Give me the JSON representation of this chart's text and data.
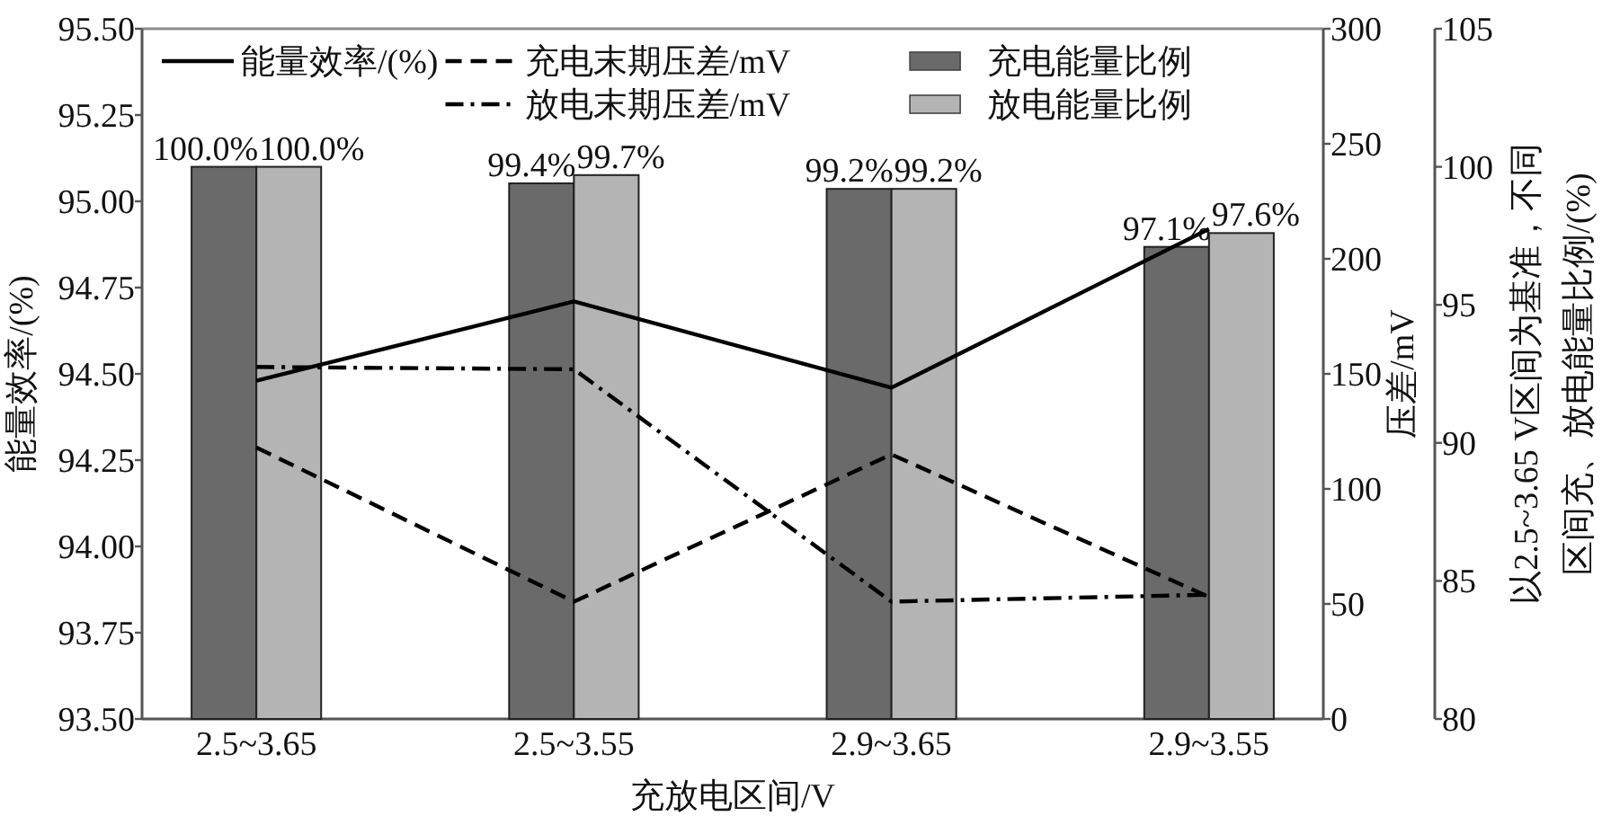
{
  "chart_data": {
    "type": "bar",
    "xlabel": "充放电区间/V",
    "ylabel": "能量效率/(%)",
    "y2label": "压差/mV",
    "y3label": "以2.5~3.65 V区间为基准，不同区间充、放电能量比例/(%)",
    "categories": [
      "2.5~3.65",
      "2.5~3.55",
      "2.9~3.65",
      "2.9~3.55"
    ],
    "series": [
      {
        "name": "充电能量比例",
        "axis": "y3",
        "color": "#6a6a6a",
        "values": [
          100.0,
          99.4,
          99.2,
          97.1
        ],
        "value_labels": [
          "100.0%",
          "99.4%",
          "99.2%",
          "97.1%"
        ]
      },
      {
        "name": "放电能量比例",
        "axis": "y3",
        "color": "#b4b4b4",
        "values": [
          100.0,
          99.7,
          99.2,
          97.6
        ],
        "value_labels": [
          "100.0%",
          "99.7%",
          "99.2%",
          "97.6%"
        ]
      },
      {
        "name": "能量效率/(%)",
        "type": "line",
        "color": "#000000",
        "line_style": "solid",
        "values": [
          94.48,
          94.71,
          94.46,
          94.92
        ]
      },
      {
        "name": "充电末期压差/mV",
        "type": "line",
        "axis": "y2",
        "color": "#000000",
        "line_style": "dashed",
        "values": [
          118,
          51,
          115,
          53
        ]
      },
      {
        "name": "放电末期压差/mV",
        "type": "line",
        "axis": "y2",
        "color": "#000000",
        "line_style": "dashdot",
        "values": [
          153,
          152,
          51,
          54
        ]
      }
    ],
    "ylim": [
      93.5,
      95.5
    ],
    "yticks": [
      {
        "value": 93.5,
        "label": "93.50"
      },
      {
        "value": 93.75,
        "label": "93.75"
      },
      {
        "value": 94.0,
        "label": "94.00"
      },
      {
        "value": 94.25,
        "label": "94.25"
      },
      {
        "value": 94.5,
        "label": "94.50"
      },
      {
        "value": 94.75,
        "label": "94.75"
      },
      {
        "value": 95.0,
        "label": "95.00"
      },
      {
        "value": 95.25,
        "label": "95.25"
      },
      {
        "value": 95.5,
        "label": "95.50"
      }
    ],
    "y2lim": [
      0,
      300
    ],
    "y2ticks": [
      0,
      50,
      100,
      150,
      200,
      250,
      300
    ],
    "y3lim": [
      80,
      105
    ],
    "y3ticks": [
      80,
      85,
      90,
      95,
      100,
      105
    ],
    "legend": "top"
  }
}
